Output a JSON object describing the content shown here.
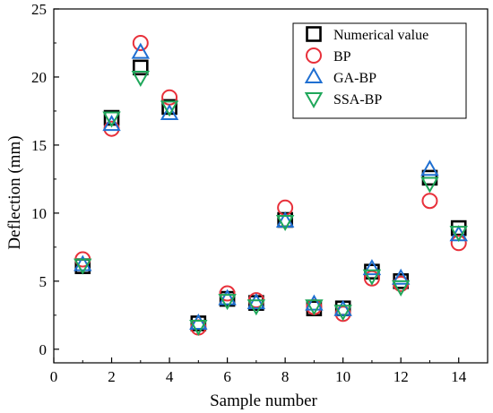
{
  "chart_data": {
    "type": "scatter",
    "xlabel": "Sample number",
    "ylabel": "Deflection (mm)",
    "xlim": [
      0,
      15
    ],
    "ylim": [
      -1,
      25
    ],
    "xticks": [
      0,
      2,
      4,
      6,
      8,
      10,
      12,
      14
    ],
    "yticks": [
      0,
      5,
      10,
      15,
      20,
      25
    ],
    "x": [
      1,
      2,
      3,
      4,
      5,
      6,
      7,
      8,
      9,
      10,
      11,
      12,
      13,
      14
    ],
    "legend_position": "top-right",
    "series": [
      {
        "name": "Numerical value",
        "marker": "square",
        "color": "#000000",
        "values": [
          6.1,
          17.0,
          20.7,
          17.8,
          1.9,
          3.7,
          3.4,
          9.5,
          3.0,
          3.0,
          5.7,
          5.0,
          12.6,
          8.9
        ]
      },
      {
        "name": "BP",
        "marker": "circle",
        "color": "#e8303a",
        "values": [
          6.6,
          16.2,
          22.5,
          18.5,
          1.6,
          4.1,
          3.6,
          10.4,
          3.1,
          2.6,
          5.2,
          4.8,
          10.9,
          7.8
        ]
      },
      {
        "name": "GA-BP",
        "marker": "triangle-up",
        "color": "#1f6fd1",
        "values": [
          6.2,
          16.5,
          21.8,
          17.3,
          1.9,
          3.7,
          3.4,
          9.4,
          3.3,
          2.9,
          5.9,
          5.2,
          13.2,
          8.4
        ]
      },
      {
        "name": "SSA-BP",
        "marker": "triangle-down",
        "color": "#1fa75a",
        "values": [
          6.2,
          17.0,
          20.0,
          17.8,
          1.7,
          3.6,
          3.2,
          9.4,
          3.2,
          2.8,
          5.4,
          4.6,
          12.2,
          8.6
        ]
      }
    ]
  }
}
